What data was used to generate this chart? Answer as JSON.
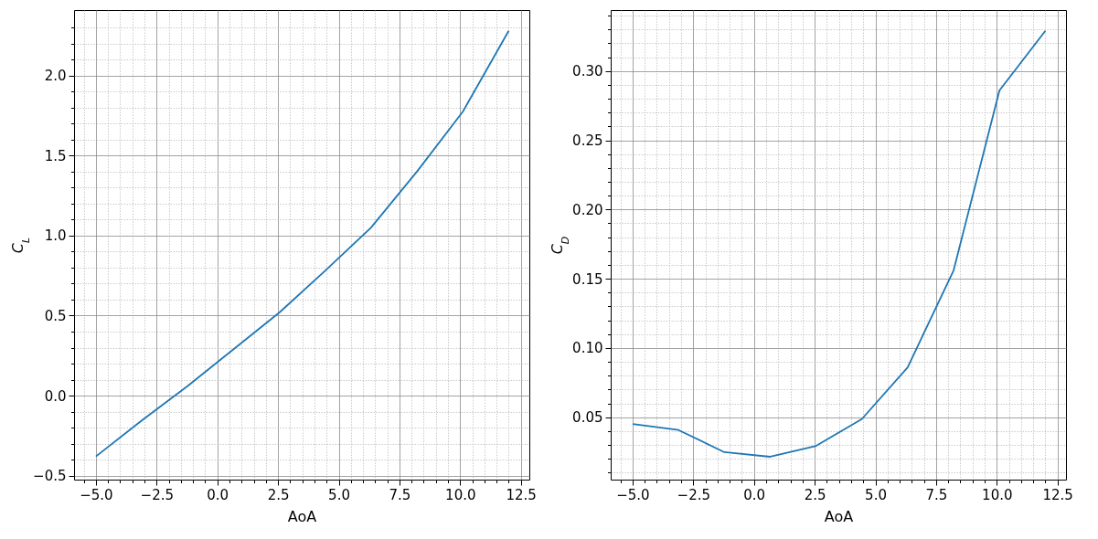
{
  "chart_data": [
    {
      "type": "line",
      "xlabel": "AoA",
      "ylabel": "C$_{L}$",
      "color": "#1f77b4",
      "grid": true,
      "x": [
        -5,
        -3.11,
        -1.22,
        0.67,
        2.56,
        4.44,
        6.33,
        8.22,
        10.11,
        12
      ],
      "values": [
        -0.38,
        -0.155,
        0.06,
        0.29,
        0.52,
        0.78,
        1.05,
        1.4,
        1.775,
        2.28
      ],
      "xlim": [
        -5.9,
        12.85
      ],
      "ylim": [
        -0.525,
        2.41
      ],
      "xticks": [
        {
          "value": -5.5,
          "label": null
        },
        {
          "value": -5,
          "label": "−5.0"
        },
        {
          "value": -4.5,
          "label": null
        },
        {
          "value": -4,
          "label": null
        },
        {
          "value": -3.5,
          "label": null
        },
        {
          "value": -3,
          "label": null
        },
        {
          "value": -2.5,
          "label": "−2.5"
        },
        {
          "value": -2,
          "label": null
        },
        {
          "value": -1.5,
          "label": null
        },
        {
          "value": -1,
          "label": null
        },
        {
          "value": -0.5,
          "label": null
        },
        {
          "value": 0,
          "label": "0.0"
        },
        {
          "value": 0.5,
          "label": null
        },
        {
          "value": 1,
          "label": null
        },
        {
          "value": 1.5,
          "label": null
        },
        {
          "value": 2,
          "label": null
        },
        {
          "value": 2.5,
          "label": "2.5"
        },
        {
          "value": 3,
          "label": null
        },
        {
          "value": 3.5,
          "label": null
        },
        {
          "value": 4,
          "label": null
        },
        {
          "value": 4.5,
          "label": null
        },
        {
          "value": 5,
          "label": "5.0"
        },
        {
          "value": 5.5,
          "label": null
        },
        {
          "value": 6,
          "label": null
        },
        {
          "value": 6.5,
          "label": null
        },
        {
          "value": 7,
          "label": null
        },
        {
          "value": 7.5,
          "label": "7.5"
        },
        {
          "value": 8,
          "label": null
        },
        {
          "value": 8.5,
          "label": null
        },
        {
          "value": 9,
          "label": null
        },
        {
          "value": 9.5,
          "label": null
        },
        {
          "value": 10,
          "label": "10.0"
        },
        {
          "value": 10.5,
          "label": null
        },
        {
          "value": 11,
          "label": null
        },
        {
          "value": 11.5,
          "label": null
        },
        {
          "value": 12,
          "label": null
        },
        {
          "value": 12.5,
          "label": "12.5"
        }
      ],
      "yticks": [
        {
          "value": -0.5,
          "label": "−0.5"
        },
        {
          "value": -0.4,
          "label": null
        },
        {
          "value": -0.3,
          "label": null
        },
        {
          "value": -0.2,
          "label": null
        },
        {
          "value": -0.1,
          "label": null
        },
        {
          "value": 0,
          "label": "0.0"
        },
        {
          "value": 0.1,
          "label": null
        },
        {
          "value": 0.2,
          "label": null
        },
        {
          "value": 0.3,
          "label": null
        },
        {
          "value": 0.4,
          "label": null
        },
        {
          "value": 0.5,
          "label": "0.5"
        },
        {
          "value": 0.6,
          "label": null
        },
        {
          "value": 0.7,
          "label": null
        },
        {
          "value": 0.8,
          "label": null
        },
        {
          "value": 0.9,
          "label": null
        },
        {
          "value": 1,
          "label": "1.0"
        },
        {
          "value": 1.1,
          "label": null
        },
        {
          "value": 1.2,
          "label": null
        },
        {
          "value": 1.3,
          "label": null
        },
        {
          "value": 1.4,
          "label": null
        },
        {
          "value": 1.5,
          "label": "1.5"
        },
        {
          "value": 1.6,
          "label": null
        },
        {
          "value": 1.7,
          "label": null
        },
        {
          "value": 1.8,
          "label": null
        },
        {
          "value": 1.9,
          "label": null
        },
        {
          "value": 2,
          "label": "2.0"
        },
        {
          "value": 2.1,
          "label": null
        },
        {
          "value": 2.2,
          "label": null
        },
        {
          "value": 2.3,
          "label": null
        }
      ]
    },
    {
      "type": "line",
      "xlabel": "AoA",
      "ylabel": "C$_{D}$",
      "color": "#1f77b4",
      "grid": true,
      "x": [
        -5,
        -3.11,
        -1.22,
        0.67,
        2.56,
        4.44,
        6.33,
        8.22,
        10.11,
        12
      ],
      "values": [
        0.0452,
        0.0408,
        0.0248,
        0.0215,
        0.0294,
        0.0487,
        0.086,
        0.156,
        0.286,
        0.329
      ],
      "xlim": [
        -5.9,
        12.85
      ],
      "ylim": [
        0.005,
        0.344
      ],
      "xticks": [
        {
          "value": -5.5,
          "label": null
        },
        {
          "value": -5,
          "label": "−5.0"
        },
        {
          "value": -4.5,
          "label": null
        },
        {
          "value": -4,
          "label": null
        },
        {
          "value": -3.5,
          "label": null
        },
        {
          "value": -3,
          "label": null
        },
        {
          "value": -2.5,
          "label": "−2.5"
        },
        {
          "value": -2,
          "label": null
        },
        {
          "value": -1.5,
          "label": null
        },
        {
          "value": -1,
          "label": null
        },
        {
          "value": -0.5,
          "label": null
        },
        {
          "value": 0,
          "label": "0.0"
        },
        {
          "value": 0.5,
          "label": null
        },
        {
          "value": 1,
          "label": null
        },
        {
          "value": 1.5,
          "label": null
        },
        {
          "value": 2,
          "label": null
        },
        {
          "value": 2.5,
          "label": "2.5"
        },
        {
          "value": 3,
          "label": null
        },
        {
          "value": 3.5,
          "label": null
        },
        {
          "value": 4,
          "label": null
        },
        {
          "value": 4.5,
          "label": null
        },
        {
          "value": 5,
          "label": "5.0"
        },
        {
          "value": 5.5,
          "label": null
        },
        {
          "value": 6,
          "label": null
        },
        {
          "value": 6.5,
          "label": null
        },
        {
          "value": 7,
          "label": null
        },
        {
          "value": 7.5,
          "label": "7.5"
        },
        {
          "value": 8,
          "label": null
        },
        {
          "value": 8.5,
          "label": null
        },
        {
          "value": 9,
          "label": null
        },
        {
          "value": 9.5,
          "label": null
        },
        {
          "value": 10,
          "label": "10.0"
        },
        {
          "value": 10.5,
          "label": null
        },
        {
          "value": 11,
          "label": null
        },
        {
          "value": 11.5,
          "label": null
        },
        {
          "value": 12,
          "label": null
        },
        {
          "value": 12.5,
          "label": "12.5"
        }
      ],
      "yticks": [
        {
          "value": 0.01,
          "label": null
        },
        {
          "value": 0.02,
          "label": null
        },
        {
          "value": 0.03,
          "label": null
        },
        {
          "value": 0.04,
          "label": null
        },
        {
          "value": 0.05,
          "label": "0.05"
        },
        {
          "value": 0.06,
          "label": null
        },
        {
          "value": 0.07,
          "label": null
        },
        {
          "value": 0.08,
          "label": null
        },
        {
          "value": 0.09,
          "label": null
        },
        {
          "value": 0.1,
          "label": "0.10"
        },
        {
          "value": 0.11,
          "label": null
        },
        {
          "value": 0.12,
          "label": null
        },
        {
          "value": 0.13,
          "label": null
        },
        {
          "value": 0.14,
          "label": null
        },
        {
          "value": 0.15,
          "label": "0.15"
        },
        {
          "value": 0.16,
          "label": null
        },
        {
          "value": 0.17,
          "label": null
        },
        {
          "value": 0.18,
          "label": null
        },
        {
          "value": 0.19,
          "label": null
        },
        {
          "value": 0.2,
          "label": "0.20"
        },
        {
          "value": 0.21,
          "label": null
        },
        {
          "value": 0.22,
          "label": null
        },
        {
          "value": 0.23,
          "label": null
        },
        {
          "value": 0.24,
          "label": null
        },
        {
          "value": 0.25,
          "label": "0.25"
        },
        {
          "value": 0.26,
          "label": null
        },
        {
          "value": 0.27,
          "label": null
        },
        {
          "value": 0.28,
          "label": null
        },
        {
          "value": 0.29,
          "label": null
        },
        {
          "value": 0.3,
          "label": "0.30"
        },
        {
          "value": 0.31,
          "label": null
        },
        {
          "value": 0.32,
          "label": null
        },
        {
          "value": 0.33,
          "label": null
        },
        {
          "value": 0.34,
          "label": null
        }
      ]
    }
  ]
}
